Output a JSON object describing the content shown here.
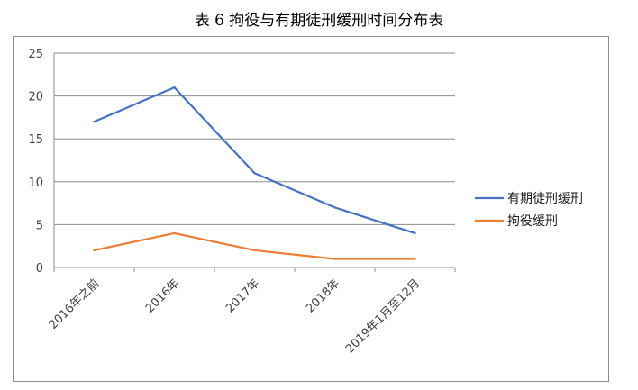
{
  "title": "表 6 拘役与有期徒刑缓刑时间分布表",
  "colors": {
    "series_1": "#4472c4",
    "series_2": "#ed7d31",
    "grid": "#8c8c8c"
  },
  "chart_data": {
    "type": "line",
    "categories": [
      "2016年之前",
      "2016年",
      "2017年",
      "2018年",
      "2019年1月至12月"
    ],
    "series": [
      {
        "name": "有期徒刑缓刑",
        "values": [
          17,
          21,
          11,
          7,
          4
        ]
      },
      {
        "name": "拘役缓刑",
        "values": [
          2,
          4,
          2,
          1,
          1
        ]
      }
    ],
    "yticks": [
      0,
      5,
      10,
      15,
      20,
      25
    ],
    "ylim": [
      0,
      25
    ],
    "grid": true,
    "legend": "right",
    "xlabel": "",
    "ylabel": ""
  }
}
